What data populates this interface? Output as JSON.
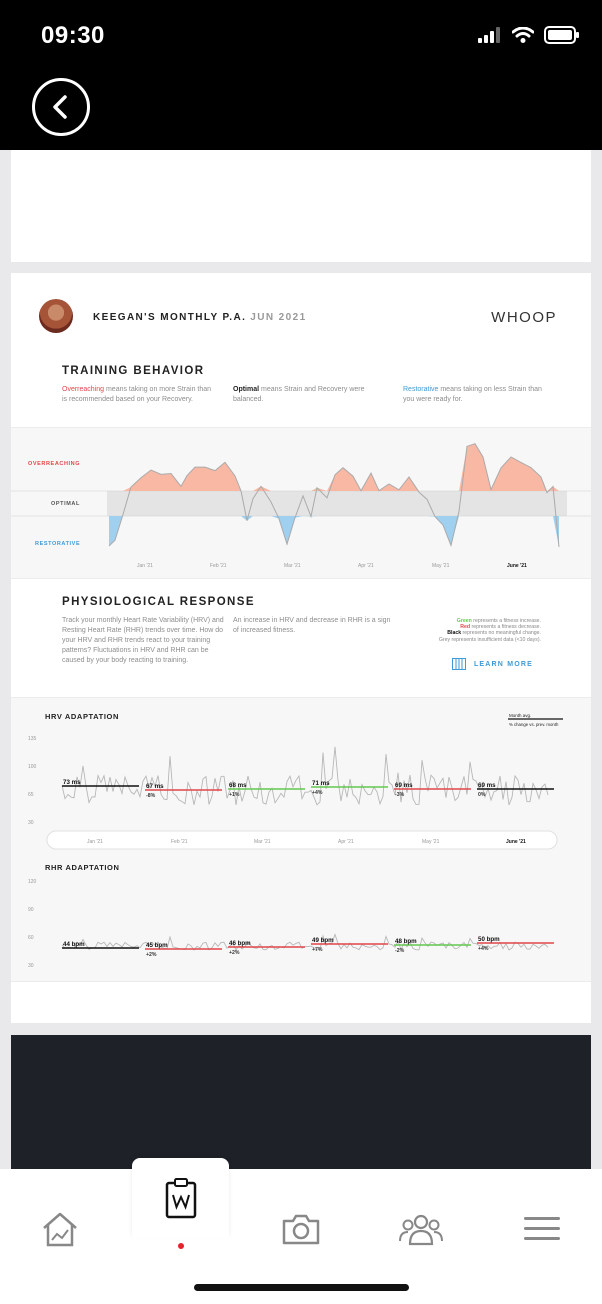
{
  "status_bar": {
    "time": "09:30"
  },
  "report": {
    "title": "KEEGAN'S MONTHLY P.A.",
    "date": "JUN 2021",
    "brand": "WHOOP"
  },
  "training_behavior": {
    "title": "TRAINING BEHAVIOR",
    "overreaching": {
      "term": "Overreaching",
      "text": " means taking on more Strain than is recommended based on your Recovery."
    },
    "optimal": {
      "term": "Optimal",
      "text": " means Strain and Recovery were balanced."
    },
    "restorative": {
      "term": "Restorative",
      "text": " means taking on less Strain than you were ready for."
    },
    "band_labels": [
      "OVERREACHING",
      "OPTIMAL",
      "RESTORATIVE"
    ],
    "months": [
      "Jan '21",
      "Feb '21",
      "Mar '21",
      "Apr '21",
      "May '21",
      "June '21"
    ]
  },
  "physiological_response": {
    "title": "PHYSIOLOGICAL RESPONSE",
    "text_left": "Track your monthly Heart Rate Variability (HRV) and Resting Heart Rate (RHR) trends over time. How do your HRV and RHR trends react to your training patterns? Fluctuations in HRV and RHR can be caused by your body reacting to training.",
    "text_mid": "An increase in HRV and decrease in RHR is a sign of increased fitness.",
    "legend": {
      "green": {
        "term": "Green",
        "text": " represents a fitness increase."
      },
      "red": {
        "term": "Red",
        "text": " represents a fitness decrease."
      },
      "black": {
        "term": "Black",
        "text": " represents no meaningful change."
      },
      "grey": "Grey represents insufficient data (<10 days)."
    },
    "learn_more": "LEARN MORE"
  },
  "hrv": {
    "title": "HRV ADAPTATION",
    "legend_avg": "Month avg.",
    "legend_change": "% change vs. prev. month",
    "y_ticks": [
      "135",
      "100",
      "65",
      "30"
    ],
    "months": [
      {
        "avg": "73 ms",
        "change": "",
        "status": "black"
      },
      {
        "avg": "67 ms",
        "change": "-8%",
        "status": "red"
      },
      {
        "avg": "68 ms",
        "change": "+1%",
        "status": "green"
      },
      {
        "avg": "71 ms",
        "change": "+4%",
        "status": "green"
      },
      {
        "avg": "69 ms",
        "change": "-3%",
        "status": "red"
      },
      {
        "avg": "69 ms",
        "change": "0%",
        "status": "black"
      }
    ],
    "x_labels": [
      "Jan '21",
      "Feb '21",
      "Mar '21",
      "Apr '21",
      "May '21",
      "June '21"
    ]
  },
  "rhr": {
    "title": "RHR ADAPTATION",
    "y_ticks": [
      "120",
      "90",
      "60",
      "30"
    ],
    "months": [
      {
        "avg": "44 bpm",
        "change": "",
        "status": "black"
      },
      {
        "avg": "45 bpm",
        "change": "+2%",
        "status": "red"
      },
      {
        "avg": "46 bpm",
        "change": "+2%",
        "status": "red"
      },
      {
        "avg": "49 bpm",
        "change": "+7%",
        "status": "red"
      },
      {
        "avg": "48 bpm",
        "change": "-2%",
        "status": "green"
      },
      {
        "avg": "50 bpm",
        "change": "+4%",
        "status": "red"
      }
    ]
  },
  "colors": {
    "over": "#f8b8a4",
    "under": "#9fd0ef",
    "red": "#e2474b",
    "green": "#63c94e",
    "black": "#111111",
    "line": "#b7b7b7"
  },
  "tabs": [
    "home",
    "report",
    "camera",
    "community",
    "menu"
  ]
}
